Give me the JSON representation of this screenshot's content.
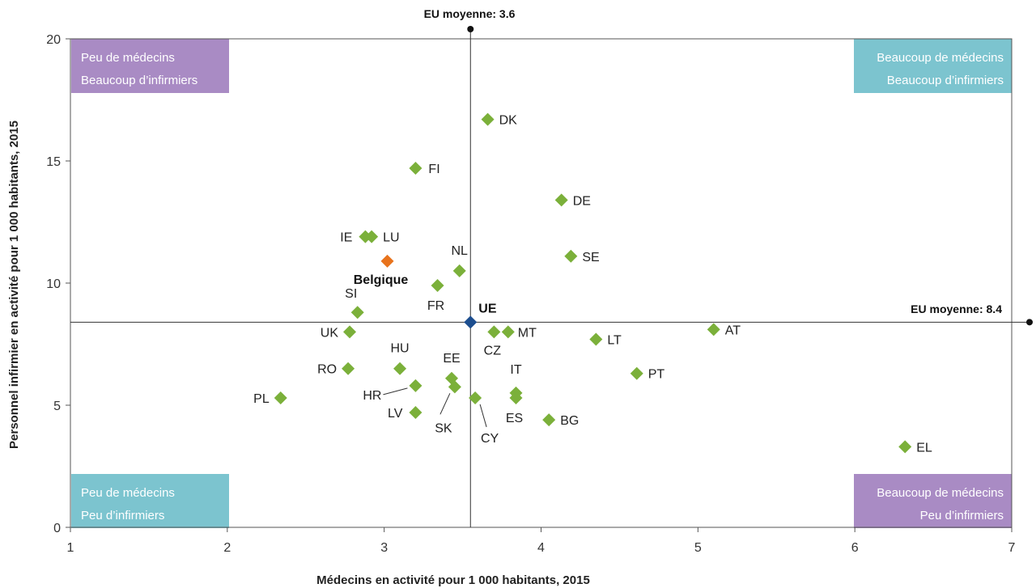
{
  "chart_data": {
    "type": "scatter",
    "xlabel": "Médecins en activité pour 1 000 habitants, 2015",
    "ylabel": "Personnel infirmier en activité pour 1 000 habitants, 2015",
    "xlim": [
      1,
      7
    ],
    "ylim": [
      0,
      20
    ],
    "x_ticks": [
      "1",
      "2",
      "3",
      "4",
      "5",
      "6",
      "7"
    ],
    "y_ticks": [
      "0",
      "5",
      "10",
      "15",
      "20"
    ],
    "reference_lines": {
      "vertical": {
        "x": 3.55,
        "label": "EU moyenne: 3.6"
      },
      "horizontal": {
        "y": 8.4,
        "label": "EU moyenne: 8.4"
      }
    },
    "quadrants": {
      "top_left": {
        "line1": "Peu de médecins",
        "line2": "Beaucoup d’infirmiers",
        "color": "#a98bc4"
      },
      "top_right": {
        "line1": "Beaucoup de médecins",
        "line2": "Beaucoup d’infirmiers",
        "color": "#7cc4cf"
      },
      "bottom_left": {
        "line1": "Peu de médecins",
        "line2": "Peu d’infirmiers",
        "color": "#7cc4cf"
      },
      "bottom_right": {
        "line1": "Beaucoup de médecins",
        "line2": "Peu d’infirmiers",
        "color": "#a98bc4"
      }
    },
    "colors": {
      "default": "#7bb03a",
      "belgique": "#e8731c",
      "eu": "#1d4e8f"
    },
    "points": [
      {
        "label": "DK",
        "x": 3.66,
        "y": 16.7
      },
      {
        "label": "FI",
        "x": 3.2,
        "y": 14.7
      },
      {
        "label": "DE",
        "x": 4.13,
        "y": 13.4
      },
      {
        "label": "IE",
        "x": 2.88,
        "y": 11.9
      },
      {
        "label": "LU",
        "x": 2.92,
        "y": 11.9
      },
      {
        "label": "SE",
        "x": 4.19,
        "y": 11.1
      },
      {
        "label": "NL",
        "x": 3.48,
        "y": 10.5
      },
      {
        "label": "Belgique",
        "x": 3.02,
        "y": 10.9,
        "highlight": "belgique"
      },
      {
        "label": "FR",
        "x": 3.34,
        "y": 9.9
      },
      {
        "label": "SI",
        "x": 2.83,
        "y": 8.8
      },
      {
        "label": "UE",
        "x": 3.55,
        "y": 8.4,
        "highlight": "eu"
      },
      {
        "label": "UK",
        "x": 2.78,
        "y": 8.0
      },
      {
        "label": "CZ",
        "x": 3.7,
        "y": 8.0
      },
      {
        "label": "MT",
        "x": 3.79,
        "y": 8.0
      },
      {
        "label": "AT",
        "x": 5.1,
        "y": 8.1
      },
      {
        "label": "LT",
        "x": 4.35,
        "y": 7.7
      },
      {
        "label": "HU",
        "x": 3.1,
        "y": 6.5
      },
      {
        "label": "RO",
        "x": 2.77,
        "y": 6.5
      },
      {
        "label": "PT",
        "x": 4.61,
        "y": 6.3
      },
      {
        "label": "EE",
        "x": 3.43,
        "y": 6.1
      },
      {
        "label": "HR",
        "x": 3.2,
        "y": 5.8
      },
      {
        "label": "SK",
        "x": 3.45,
        "y": 5.75
      },
      {
        "label": "IT",
        "x": 3.84,
        "y": 5.5
      },
      {
        "label": "ES",
        "x": 3.84,
        "y": 5.3
      },
      {
        "label": "PL",
        "x": 2.34,
        "y": 5.3
      },
      {
        "label": "CY",
        "x": 3.58,
        "y": 5.3
      },
      {
        "label": "LV",
        "x": 3.2,
        "y": 4.7
      },
      {
        "label": "BG",
        "x": 4.05,
        "y": 4.4
      },
      {
        "label": "EL",
        "x": 6.32,
        "y": 3.3
      }
    ]
  }
}
